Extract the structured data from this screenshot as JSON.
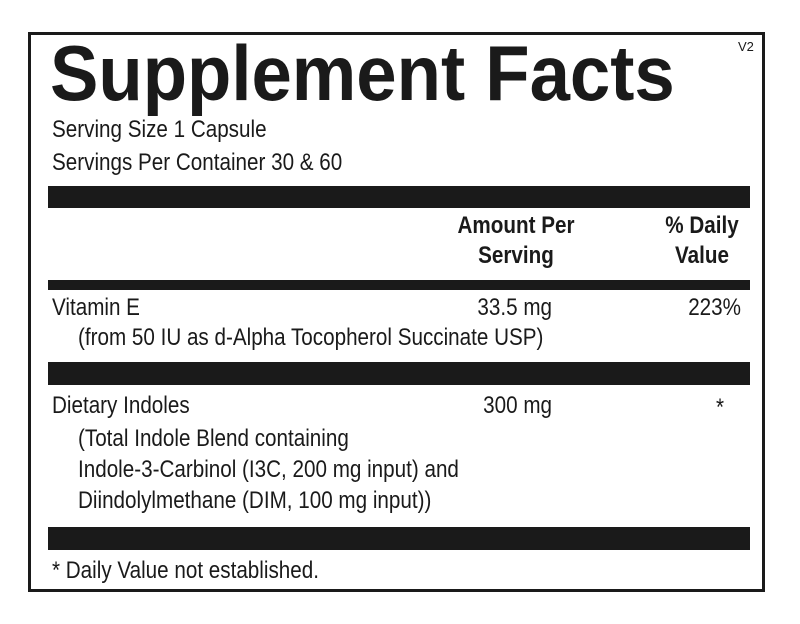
{
  "title": "Supplement Facts",
  "version": "V2",
  "serving_size": "Serving Size  1 Capsule",
  "servings_per_container": "Servings Per Container  30 & 60",
  "columns": {
    "amount_line1": "Amount Per",
    "amount_line2": "Serving",
    "dv_line1": "% Daily",
    "dv_line2": "Value"
  },
  "rows": [
    {
      "name": "Vitamin E",
      "details": [
        "(from 50 IU as d-Alpha Tocopherol Succinate USP)"
      ],
      "amount": "33.5 mg",
      "dv": "223%"
    },
    {
      "name": "Dietary Indoles",
      "details": [
        "(Total Indole Blend containing",
        "Indole-3-Carbinol (I3C, 200 mg input) and",
        "Diindolylmethane (DIM, 100 mg input))"
      ],
      "amount": "300 mg",
      "dv": "*"
    }
  ],
  "footnote": "* Daily Value not established."
}
